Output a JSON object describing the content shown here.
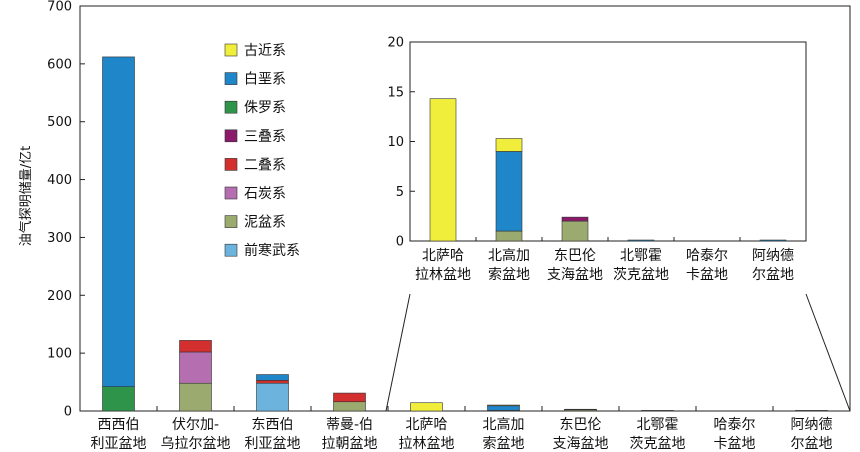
{
  "chart_data": {
    "type": "bar",
    "stacked": true,
    "ylabel": "油气探明储量/亿t",
    "ylim": [
      0,
      700
    ],
    "yticks": [
      0,
      100,
      200,
      300,
      400,
      500,
      600,
      700
    ],
    "categories": [
      [
        "西西伯",
        "利亚盆地"
      ],
      [
        "伏尔加-",
        "乌拉尔盆地"
      ],
      [
        "东西伯",
        "利亚盆地"
      ],
      [
        "蒂曼-伯",
        "拉朝盆地"
      ],
      [
        "北萨哈",
        "拉林盆地"
      ],
      [
        "北高加",
        "索盆地"
      ],
      [
        "东巴伦",
        "支海盆地"
      ],
      [
        "北鄂霍",
        "茨克盆地"
      ],
      [
        "哈泰尔",
        "卡盆地"
      ],
      [
        "阿纳德",
        "尔盆地"
      ]
    ],
    "series": [
      {
        "name": "前寒武系",
        "color": "#6cb4de",
        "values": [
          0,
          0,
          48,
          0,
          0,
          0,
          0,
          0,
          0,
          0
        ]
      },
      {
        "name": "泥盆系",
        "color": "#9bab70",
        "values": [
          0,
          48,
          0,
          16,
          0,
          1,
          2,
          0,
          0,
          0
        ]
      },
      {
        "name": "石炭系",
        "color": "#b56fb0",
        "values": [
          0,
          54,
          0,
          0,
          0,
          0,
          0,
          0,
          0,
          0
        ]
      },
      {
        "name": "二叠系",
        "color": "#d32f2f",
        "values": [
          0,
          20,
          5,
          15,
          0,
          0,
          0,
          0,
          0,
          0
        ]
      },
      {
        "name": "三叠系",
        "color": "#8b1a6b",
        "values": [
          0,
          0,
          0,
          0,
          0,
          0,
          0.4,
          0,
          0,
          0
        ]
      },
      {
        "name": "侏罗系",
        "color": "#2e9449",
        "values": [
          42,
          0,
          0,
          0,
          0,
          0,
          0,
          0,
          0,
          0
        ]
      },
      {
        "name": "白垩系",
        "color": "#1f86c9",
        "values": [
          570,
          0,
          10,
          0,
          0,
          8,
          0,
          0.1,
          0,
          0.1
        ]
      },
      {
        "name": "古近系",
        "color": "#f0ee3a",
        "values": [
          0,
          0,
          0,
          0,
          14.3,
          1.3,
          0,
          0,
          0,
          0
        ]
      }
    ],
    "legend_order": [
      "古近系",
      "白垩系",
      "侏罗系",
      "三叠系",
      "二叠系",
      "石炭系",
      "泥盆系",
      "前寒武系"
    ],
    "legend_position": "top-left-inside",
    "inset": {
      "categories": [
        [
          "北萨哈",
          "拉林盆地"
        ],
        [
          "北高加",
          "索盆地"
        ],
        [
          "东巴伦",
          "支海盆地"
        ],
        [
          "北鄂霍",
          "茨克盆地"
        ],
        [
          "哈泰尔",
          "卡盆地"
        ],
        [
          "阿纳德",
          "尔盆地"
        ]
      ],
      "ylim": [
        0,
        20
      ],
      "yticks": [
        0,
        5,
        10,
        15,
        20
      ]
    }
  }
}
